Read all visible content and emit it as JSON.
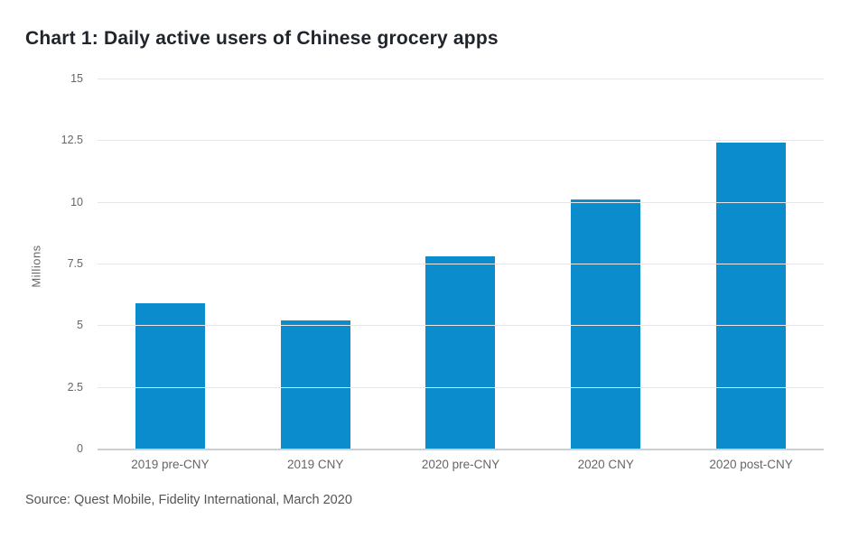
{
  "page": {
    "title": "Chart 1: Daily active users of Chinese grocery apps",
    "source": "Source: Quest Mobile, Fidelity International, March 2020"
  },
  "chart_data": {
    "type": "bar",
    "title": "Chart 1: Daily active users of Chinese grocery apps",
    "categories": [
      "2019 pre-CNY",
      "2019 CNY",
      "2020 pre-CNY",
      "2020 CNY",
      "2020 post-CNY"
    ],
    "values": [
      5.9,
      5.2,
      7.8,
      10.1,
      12.4
    ],
    "xlabel": "",
    "ylabel": "Millions",
    "ylim": [
      0,
      15
    ],
    "yticks": [
      0,
      2.5,
      5,
      7.5,
      10,
      12.5,
      15
    ],
    "ytick_labels": [
      "0",
      "2.5",
      "5",
      "7.5",
      "10",
      "12.5",
      "15"
    ],
    "grid": true,
    "legend": false,
    "source": "Source: Quest Mobile, Fidelity International, March 2020"
  },
  "colors": {
    "bar": "#0a8ccd",
    "gridline": "#e6e6e6",
    "axis_line": "#cbd0d4",
    "axis_text": "#666666",
    "title_text": "#20252c",
    "source_text": "#545454",
    "background": "#ffffff"
  }
}
